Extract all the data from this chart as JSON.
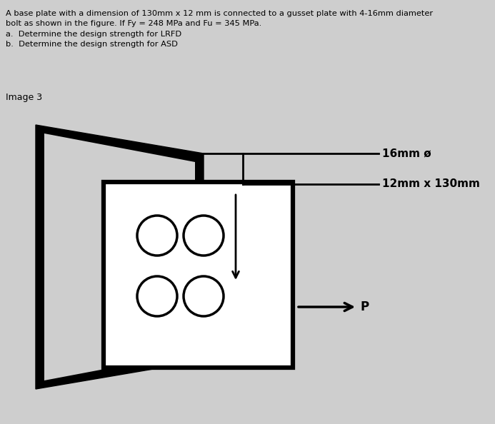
{
  "background_color": "#cecece",
  "title_line1": "A base plate with a dimension of 130mm x 12 mm is connected to a gusset plate with 4-16mm diameter",
  "title_line2": "bolt as shown in the figure. If Fy = 248 MPa and Fu = 345 MPa.",
  "item_a": "a.  Determine the design strength for LRFD",
  "item_b": "b.  Determine the design strength for ASD",
  "image_label": "Image 3",
  "label_16mm": "16mm ø",
  "label_12mm": "12mm x 130mm",
  "label_P": "P",
  "line_color": "#000000",
  "fill_color": "#ffffff",
  "text_color": "#000000",
  "lw_thick": 4.5,
  "lw_thin": 2.0,
  "lw_arrow": 2.5
}
